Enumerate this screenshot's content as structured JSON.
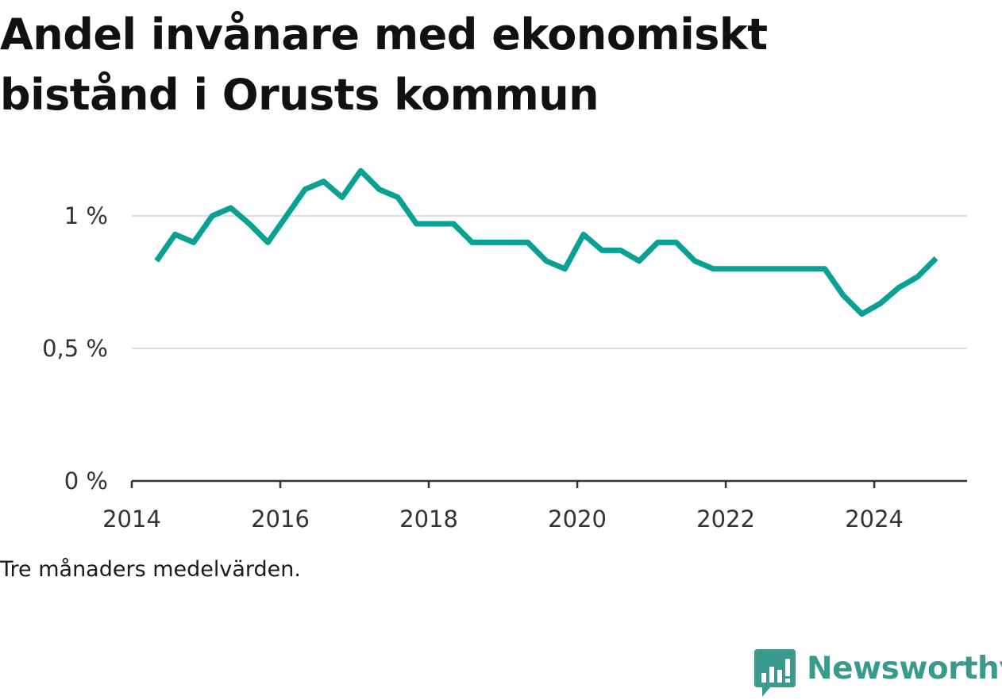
{
  "title": "Andel invånare med ekonomiskt bistånd i Orusts kommun",
  "note": "Tre månaders medelvärden.",
  "brand": {
    "name": "Newsworthy",
    "icon": "bar-chart-speech-bubble-icon",
    "color": "#3b9a8e"
  },
  "chart_data": {
    "type": "line",
    "xlabel": "",
    "ylabel": "",
    "ylim": [
      0,
      1.2
    ],
    "xlim": [
      "2014-01",
      "2025-04"
    ],
    "y_ticks": [
      {
        "value": 0,
        "label": "0 %"
      },
      {
        "value": 0.5,
        "label": "0,5 %"
      },
      {
        "value": 1,
        "label": "1 %"
      }
    ],
    "x_ticks": [
      {
        "value": "2014-01",
        "label": "2014"
      },
      {
        "value": "2016-01",
        "label": "2016"
      },
      {
        "value": "2018-01",
        "label": "2018"
      },
      {
        "value": "2020-01",
        "label": "2020"
      },
      {
        "value": "2022-01",
        "label": "2022"
      },
      {
        "value": "2024-01",
        "label": "2024"
      }
    ],
    "grid": true,
    "line_color": "#0aa195",
    "series": [
      {
        "x": [
          "2014-05",
          "2014-08",
          "2014-11",
          "2015-02",
          "2015-05",
          "2015-08",
          "2015-11",
          "2016-02",
          "2016-05",
          "2016-08",
          "2016-11",
          "2017-02",
          "2017-05",
          "2017-08",
          "2017-11",
          "2018-02",
          "2018-05",
          "2018-08",
          "2018-11",
          "2019-02",
          "2019-05",
          "2019-08",
          "2019-11",
          "2020-02",
          "2020-05",
          "2020-08",
          "2020-11",
          "2021-02",
          "2021-05",
          "2021-08",
          "2021-11",
          "2022-02",
          "2022-05",
          "2022-08",
          "2022-11",
          "2023-02",
          "2023-05",
          "2023-08",
          "2023-11",
          "2024-02",
          "2024-05",
          "2024-08",
          "2024-11"
        ],
        "values": [
          0.83,
          0.93,
          0.9,
          1.0,
          1.03,
          0.97,
          0.9,
          1.0,
          1.1,
          1.13,
          1.07,
          1.17,
          1.1,
          1.07,
          0.97,
          0.97,
          0.97,
          0.9,
          0.9,
          0.9,
          0.9,
          0.83,
          0.8,
          0.93,
          0.87,
          0.87,
          0.83,
          0.9,
          0.9,
          0.83,
          0.8,
          0.8,
          0.8,
          0.8,
          0.8,
          0.8,
          0.8,
          0.7,
          0.63,
          0.67,
          0.73,
          0.77,
          0.84
        ]
      }
    ]
  }
}
